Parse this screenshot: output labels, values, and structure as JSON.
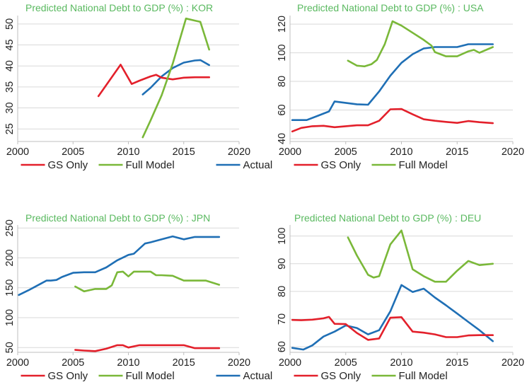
{
  "colors": {
    "Actual": "#1f6fb5",
    "GS Only": "#e3202b",
    "Full Model": "#7ab839",
    "title": "#59b95f"
  },
  "chart_data": [
    {
      "type": "line",
      "title": "Predicted National Debt to GDP (%) : KOR",
      "xlim": [
        2000,
        2020
      ],
      "ylim": [
        22,
        52
      ],
      "xticks": [
        2000,
        2005,
        2010,
        2015,
        2020
      ],
      "yticks": [
        25,
        30,
        35,
        40,
        45,
        50
      ],
      "legend": "bottom",
      "series": [
        {
          "name": "Actual",
          "x": [
            2011.3,
            2012,
            2013,
            2014,
            2015,
            2016,
            2016.5,
            2017.3
          ],
          "y": [
            33.2,
            34.8,
            37.5,
            39.5,
            40.8,
            41.3,
            41.4,
            40.2
          ]
        },
        {
          "name": "GS Only",
          "x": [
            2007.3,
            2009.3,
            2010.3,
            2011,
            2012,
            2012.5,
            2013,
            2014,
            2015,
            2016,
            2017.3
          ],
          "y": [
            32.8,
            40.3,
            35.7,
            36.5,
            37.5,
            37.9,
            37.2,
            36.8,
            37.2,
            37.3,
            37.3
          ]
        },
        {
          "name": "Full Model",
          "x": [
            2011.3,
            2012,
            2013,
            2014,
            2015.2,
            2016,
            2016.5,
            2017.3
          ],
          "y": [
            23,
            27,
            33,
            40.5,
            51.3,
            50.8,
            50.5,
            43.9
          ]
        }
      ]
    },
    {
      "type": "line",
      "title": "Predicted National Debt to GDP (%) : USA",
      "xlim": [
        2000,
        2020
      ],
      "ylim": [
        38,
        126
      ],
      "xticks": [
        2000,
        2005,
        2010,
        2015,
        2020
      ],
      "yticks": [
        40,
        60,
        80,
        100,
        120
      ],
      "legend": "bottom",
      "series": [
        {
          "name": "Actual",
          "x": [
            2000.2,
            2001.5,
            2002.5,
            2003.5,
            2004,
            2005,
            2006,
            2007,
            2008,
            2009,
            2010,
            2011,
            2012,
            2013,
            2014,
            2015,
            2016,
            2017,
            2018.2
          ],
          "y": [
            53,
            53,
            56,
            59,
            66,
            65,
            64,
            63.7,
            73,
            84,
            93,
            99,
            103,
            104,
            104,
            104,
            106,
            106,
            106
          ]
        },
        {
          "name": "GS Only",
          "x": [
            2000.2,
            2001,
            2002,
            2003,
            2004,
            2005,
            2006,
            2007,
            2008,
            2009,
            2010,
            2011,
            2012,
            2013,
            2014,
            2015,
            2016,
            2017,
            2018.2
          ],
          "y": [
            45,
            47.5,
            48.7,
            49,
            48,
            48.7,
            49.3,
            49.3,
            52.5,
            60.5,
            60.7,
            57,
            53.5,
            52.5,
            51.7,
            51,
            52.3,
            51.5,
            50.8
          ]
        },
        {
          "name": "Full Model",
          "x": [
            2005.2,
            2006,
            2006.7,
            2007.3,
            2007.8,
            2008.5,
            2009.2,
            2010,
            2011,
            2012,
            2012.7,
            2013,
            2014,
            2015,
            2016,
            2016.5,
            2017,
            2018.2
          ],
          "y": [
            94.5,
            91,
            90.5,
            92,
            95,
            106,
            122,
            119,
            114,
            109,
            105,
            100.5,
            97.5,
            97.5,
            101,
            102,
            100,
            104
          ]
        }
      ]
    },
    {
      "type": "line",
      "title": "Predicted National Debt to GDP (%) : JPN",
      "xlim": [
        2000,
        2020
      ],
      "ylim": [
        42,
        255
      ],
      "xticks": [
        2000,
        2005,
        2010,
        2015,
        2020
      ],
      "yticks": [
        50,
        100,
        150,
        200,
        250
      ],
      "legend": "bottom",
      "series": [
        {
          "name": "Actual",
          "x": [
            2000.1,
            2001,
            2002,
            2002.6,
            2003,
            2003.5,
            2004,
            2005,
            2006,
            2007,
            2008,
            2009,
            2010,
            2010.5,
            2011.5,
            2012,
            2013,
            2014,
            2015,
            2016,
            2017,
            2018.2
          ],
          "y": [
            138,
            146,
            156,
            162,
            162,
            163,
            168,
            175,
            176,
            176,
            184,
            196,
            205,
            207,
            224,
            226,
            231,
            236,
            231,
            235,
            235,
            235
          ]
        },
        {
          "name": "GS Only",
          "x": [
            2005.2,
            2006,
            2007,
            2008,
            2009,
            2009.5,
            2010,
            2011,
            2012,
            2013,
            2014,
            2015,
            2016,
            2017,
            2018.2
          ],
          "y": [
            46,
            45,
            44,
            48,
            54,
            54,
            50,
            54,
            54,
            54,
            54,
            54,
            49,
            49,
            49
          ]
        },
        {
          "name": "Full Model",
          "x": [
            2005.2,
            2006,
            2007,
            2008,
            2008.5,
            2009,
            2009.5,
            2010,
            2010.5,
            2011,
            2012,
            2012.5,
            2013,
            2014,
            2015,
            2016,
            2017,
            2018.2
          ],
          "y": [
            152,
            144,
            148,
            148,
            154,
            176,
            177,
            169,
            177,
            177,
            177,
            171,
            171,
            170,
            162,
            162,
            162,
            155
          ]
        }
      ]
    },
    {
      "type": "line",
      "title": "Predicted National Debt to GDP (%) : DEU",
      "xlim": [
        2000,
        2020
      ],
      "ylim": [
        58,
        104
      ],
      "xticks": [
        2000,
        2005,
        2010,
        2015,
        2020
      ],
      "yticks": [
        60,
        70,
        80,
        90,
        100
      ],
      "legend": "bottom",
      "series": [
        {
          "name": "Actual",
          "x": [
            2000.2,
            2001.2,
            2002,
            2003,
            2004,
            2005,
            2006,
            2007,
            2008,
            2009,
            2010,
            2011,
            2012,
            2013,
            2014,
            2015,
            2016,
            2017,
            2018.2
          ],
          "y": [
            59.6,
            59,
            60.5,
            63.7,
            65.5,
            67.7,
            66.8,
            64.5,
            66,
            72.8,
            82.3,
            79.8,
            81,
            77.8,
            75,
            72,
            69,
            66,
            62
          ]
        },
        {
          "name": "GS Only",
          "x": [
            2000.2,
            2001,
            2002,
            2003,
            2003.5,
            2004,
            2005,
            2006,
            2007,
            2008,
            2009,
            2010,
            2011,
            2012,
            2013,
            2014,
            2015,
            2016,
            2017,
            2018.2
          ],
          "y": [
            69.7,
            69.6,
            69.8,
            70.3,
            70.8,
            68.3,
            68.2,
            65,
            62.5,
            63,
            70.5,
            70.7,
            65.5,
            65.1,
            64.5,
            63.5,
            63.5,
            64.1,
            64.2,
            64.2
          ]
        },
        {
          "name": "Full Model",
          "x": [
            2005.2,
            2006,
            2007,
            2007.5,
            2008,
            2009,
            2010,
            2011,
            2012,
            2013,
            2014,
            2015,
            2016,
            2017,
            2018.2
          ],
          "y": [
            99.5,
            93,
            86,
            85,
            85.5,
            97,
            102,
            88,
            85.5,
            83.5,
            83.5,
            87.5,
            91,
            89.5,
            90
          ]
        }
      ]
    }
  ]
}
